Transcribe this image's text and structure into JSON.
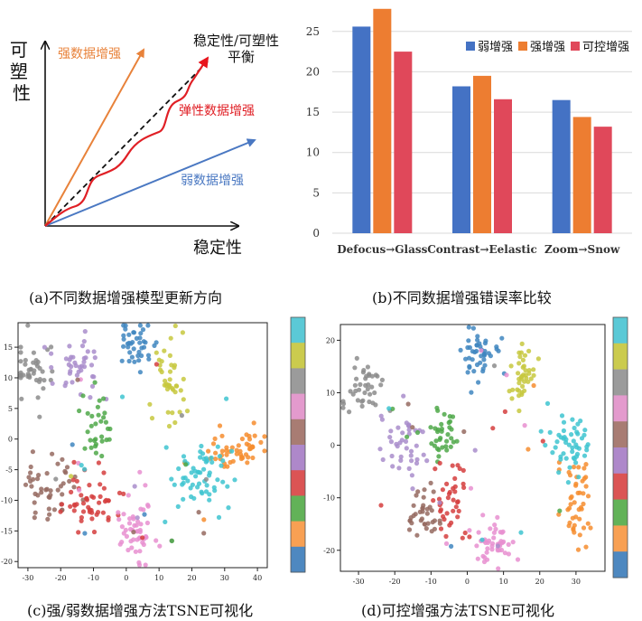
{
  "chart_data": [
    {
      "type": "diagram",
      "id": "a",
      "ylabel": "可塑性",
      "xlabel": "稳定性",
      "annotations": {
        "strong": "强数据增强",
        "elastic": "弹性数据增强",
        "weak": "弱数据增强",
        "target_line1": "稳定性/可塑性",
        "target_line2": "平衡"
      },
      "colors": {
        "strong": "#E8823A",
        "elastic": "#E01F25",
        "weak": "#4A78C2",
        "target": "#E8141C",
        "axis": "#111111"
      },
      "caption": "(a)不同数据增强模型更新方向"
    },
    {
      "type": "bar",
      "id": "b",
      "categories": [
        "Defocus→Glass",
        "Contrast→Eelastic",
        "Zoom→Snow"
      ],
      "series": [
        {
          "name": "弱增强",
          "color": "#4472C4",
          "values": [
            25.6,
            18.2,
            16.5
          ]
        },
        {
          "name": "强增强",
          "color": "#ED7D31",
          "values": [
            27.8,
            19.5,
            14.4
          ]
        },
        {
          "name": "可控增强",
          "color": "#E0485A",
          "values": [
            22.5,
            16.6,
            13.2
          ]
        }
      ],
      "yticks": [
        "0",
        "5",
        "10",
        "15",
        "20",
        "25"
      ],
      "ylim": [
        0,
        28
      ],
      "legend": "top-right",
      "caption": "(b)不同数据增强错误率比较"
    },
    {
      "type": "scatter",
      "id": "c",
      "xlim": [
        -33,
        43
      ],
      "ylim": [
        -21,
        19
      ],
      "xticks": [
        "-30",
        "-20",
        "-10",
        "0",
        "10",
        "20",
        "30",
        "40"
      ],
      "yticks": [
        "-20",
        "-15",
        "-10",
        "-5",
        "0",
        "5",
        "10",
        "15"
      ],
      "cluster_colors": [
        "#5BC9D6",
        "#CBCB4E",
        "#9B9B9B",
        "#E39ACD",
        "#A87C73",
        "#AE88CA",
        "#DB5454",
        "#62B258",
        "#F8A053",
        "#4E88C0"
      ],
      "clusters": [
        {
          "cx": 2.5,
          "cy": 15.4,
          "sx": 2.2,
          "sy": 2.2,
          "n": 40,
          "color": "#3F86BF"
        },
        {
          "cx": 13.5,
          "cy": 10.0,
          "sx": 3.0,
          "sy": 3.5,
          "n": 40,
          "color": "#C7C83E"
        },
        {
          "cx": -27.0,
          "cy": 11.5,
          "sx": 3.5,
          "sy": 2.5,
          "n": 40,
          "color": "#8C8C8C"
        },
        {
          "cx": -14.5,
          "cy": 11.5,
          "sx": 4.0,
          "sy": 3.0,
          "n": 40,
          "color": "#A98DCB"
        },
        {
          "cx": -9.0,
          "cy": 1.2,
          "sx": 2.5,
          "sy": 2.5,
          "n": 30,
          "color": "#4FA849"
        },
        {
          "cx": -23.5,
          "cy": -7.5,
          "sx": 4.0,
          "sy": 3.0,
          "n": 45,
          "color": "#956A60"
        },
        {
          "cx": -11.0,
          "cy": -10.0,
          "sx": 4.5,
          "sy": 2.5,
          "n": 50,
          "color": "#D53E3E"
        },
        {
          "cx": 3.0,
          "cy": -15.0,
          "sx": 2.5,
          "sy": 3.5,
          "n": 50,
          "color": "#E78FD0"
        },
        {
          "cx": 34.0,
          "cy": -1.5,
          "sx": 4.5,
          "sy": 1.8,
          "n": 50,
          "color": "#F68D2F"
        },
        {
          "cx": 22.5,
          "cy": -6.5,
          "sx": 4.0,
          "sy": 2.8,
          "n": 60,
          "color": "#3EC4D0"
        }
      ],
      "caption": "(c)强/弱数据增强方法TSNE可视化"
    },
    {
      "type": "scatter",
      "id": "d",
      "xlim": [
        -35,
        38
      ],
      "ylim": [
        -24,
        23
      ],
      "xticks": [
        "-30",
        "-20",
        "-10",
        "0",
        "10",
        "20",
        "30"
      ],
      "yticks": [
        "-20",
        "-10",
        "0",
        "10",
        "20"
      ],
      "cluster_colors": [
        "#5BC9D6",
        "#CBCB4E",
        "#9B9B9B",
        "#E39ACD",
        "#A87C73",
        "#AE88CA",
        "#DB5454",
        "#62B258",
        "#F8A053",
        "#4E88C0"
      ],
      "clusters": [
        {
          "cx": 2.5,
          "cy": 17.0,
          "sx": 3.0,
          "sy": 2.5,
          "n": 45,
          "color": "#3F86BF"
        },
        {
          "cx": 14.5,
          "cy": 14.0,
          "sx": 2.0,
          "sy": 3.0,
          "n": 40,
          "color": "#C7C83E"
        },
        {
          "cx": -29.0,
          "cy": 11.0,
          "sx": 3.0,
          "sy": 2.5,
          "n": 40,
          "color": "#8C8C8C"
        },
        {
          "cx": -17.0,
          "cy": 0.0,
          "sx": 3.5,
          "sy": 3.5,
          "n": 40,
          "color": "#A98DCB"
        },
        {
          "cx": -7.0,
          "cy": 2.0,
          "sx": 2.5,
          "sy": 3.0,
          "n": 35,
          "color": "#4FA849"
        },
        {
          "cx": -13.0,
          "cy": -13.0,
          "sx": 3.0,
          "sy": 2.5,
          "n": 35,
          "color": "#956A60"
        },
        {
          "cx": -5.0,
          "cy": -11.0,
          "sx": 2.5,
          "sy": 3.5,
          "n": 40,
          "color": "#D53E3E"
        },
        {
          "cx": 7.0,
          "cy": -18.5,
          "sx": 2.5,
          "sy": 2.0,
          "n": 45,
          "color": "#E78FD0"
        },
        {
          "cx": 30.5,
          "cy": -11.0,
          "sx": 2.2,
          "sy": 4.0,
          "n": 45,
          "color": "#F68D2F"
        },
        {
          "cx": 28.0,
          "cy": 0.0,
          "sx": 2.5,
          "sy": 3.0,
          "n": 50,
          "color": "#3EC4D0"
        }
      ],
      "caption": "(d)可控增强方法TSNE可视化"
    }
  ]
}
